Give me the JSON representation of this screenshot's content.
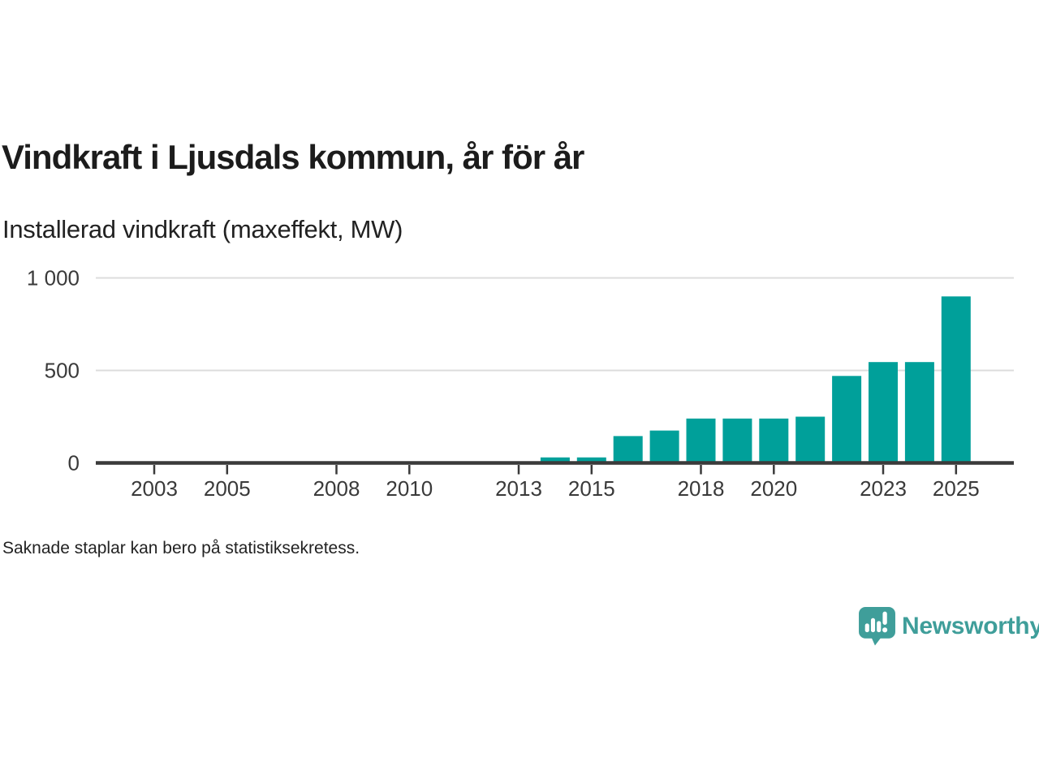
{
  "header": {
    "title": "Vindkraft i Ljusdals kommun, år för år",
    "subtitle": "Installerad vindkraft (maxeffekt, MW)"
  },
  "chart_data": {
    "type": "bar",
    "title": "Vindkraft i Ljusdals kommun, år för år",
    "subtitle": "Installerad vindkraft (maxeffekt, MW)",
    "xlabel": "",
    "ylabel": "",
    "unit": "MW",
    "ylim": [
      0,
      1000
    ],
    "grid": "horizontal",
    "legend": "none",
    "years": [
      2002,
      2003,
      2004,
      2005,
      2006,
      2007,
      2008,
      2009,
      2010,
      2011,
      2012,
      2013,
      2014,
      2015,
      2016,
      2017,
      2018,
      2019,
      2020,
      2021,
      2022,
      2023,
      2024,
      2025
    ],
    "values": [
      null,
      null,
      null,
      null,
      null,
      null,
      null,
      null,
      null,
      null,
      null,
      null,
      30,
      30,
      145,
      175,
      240,
      240,
      240,
      250,
      470,
      545,
      545,
      900
    ],
    "x_ticks": [
      {
        "year": 2003,
        "label": "2003"
      },
      {
        "year": 2005,
        "label": "2005"
      },
      {
        "year": 2008,
        "label": "2008"
      },
      {
        "year": 2010,
        "label": "2010"
      },
      {
        "year": 2013,
        "label": "2013"
      },
      {
        "year": 2015,
        "label": "2015"
      },
      {
        "year": 2018,
        "label": "2018"
      },
      {
        "year": 2020,
        "label": "2020"
      },
      {
        "year": 2023,
        "label": "2023"
      },
      {
        "year": 2025,
        "label": "2025"
      }
    ],
    "y_ticks": [
      {
        "value": 0,
        "label": "0"
      },
      {
        "value": 500,
        "label": "500"
      },
      {
        "value": 1000,
        "label": "1 000"
      }
    ],
    "note": "Saknade staplar kan bero på statistiksekretess."
  },
  "footer": {
    "note": "Saknade staplar kan bero på statistiksekretess.",
    "brand_name": "Newsworthy"
  },
  "icons": {
    "brand_icon": "newsworthy-speech-bubble-bar-chart-icon"
  },
  "colors": {
    "background": "#ffffff",
    "bar": "#00a09a",
    "axis": "#3a3a3a",
    "axis_text": "#3a3a3a",
    "grid": "#dcdcdc",
    "title_text": "#1c1c1c",
    "body_text": "#222222",
    "brand": "#3f9e9a"
  }
}
